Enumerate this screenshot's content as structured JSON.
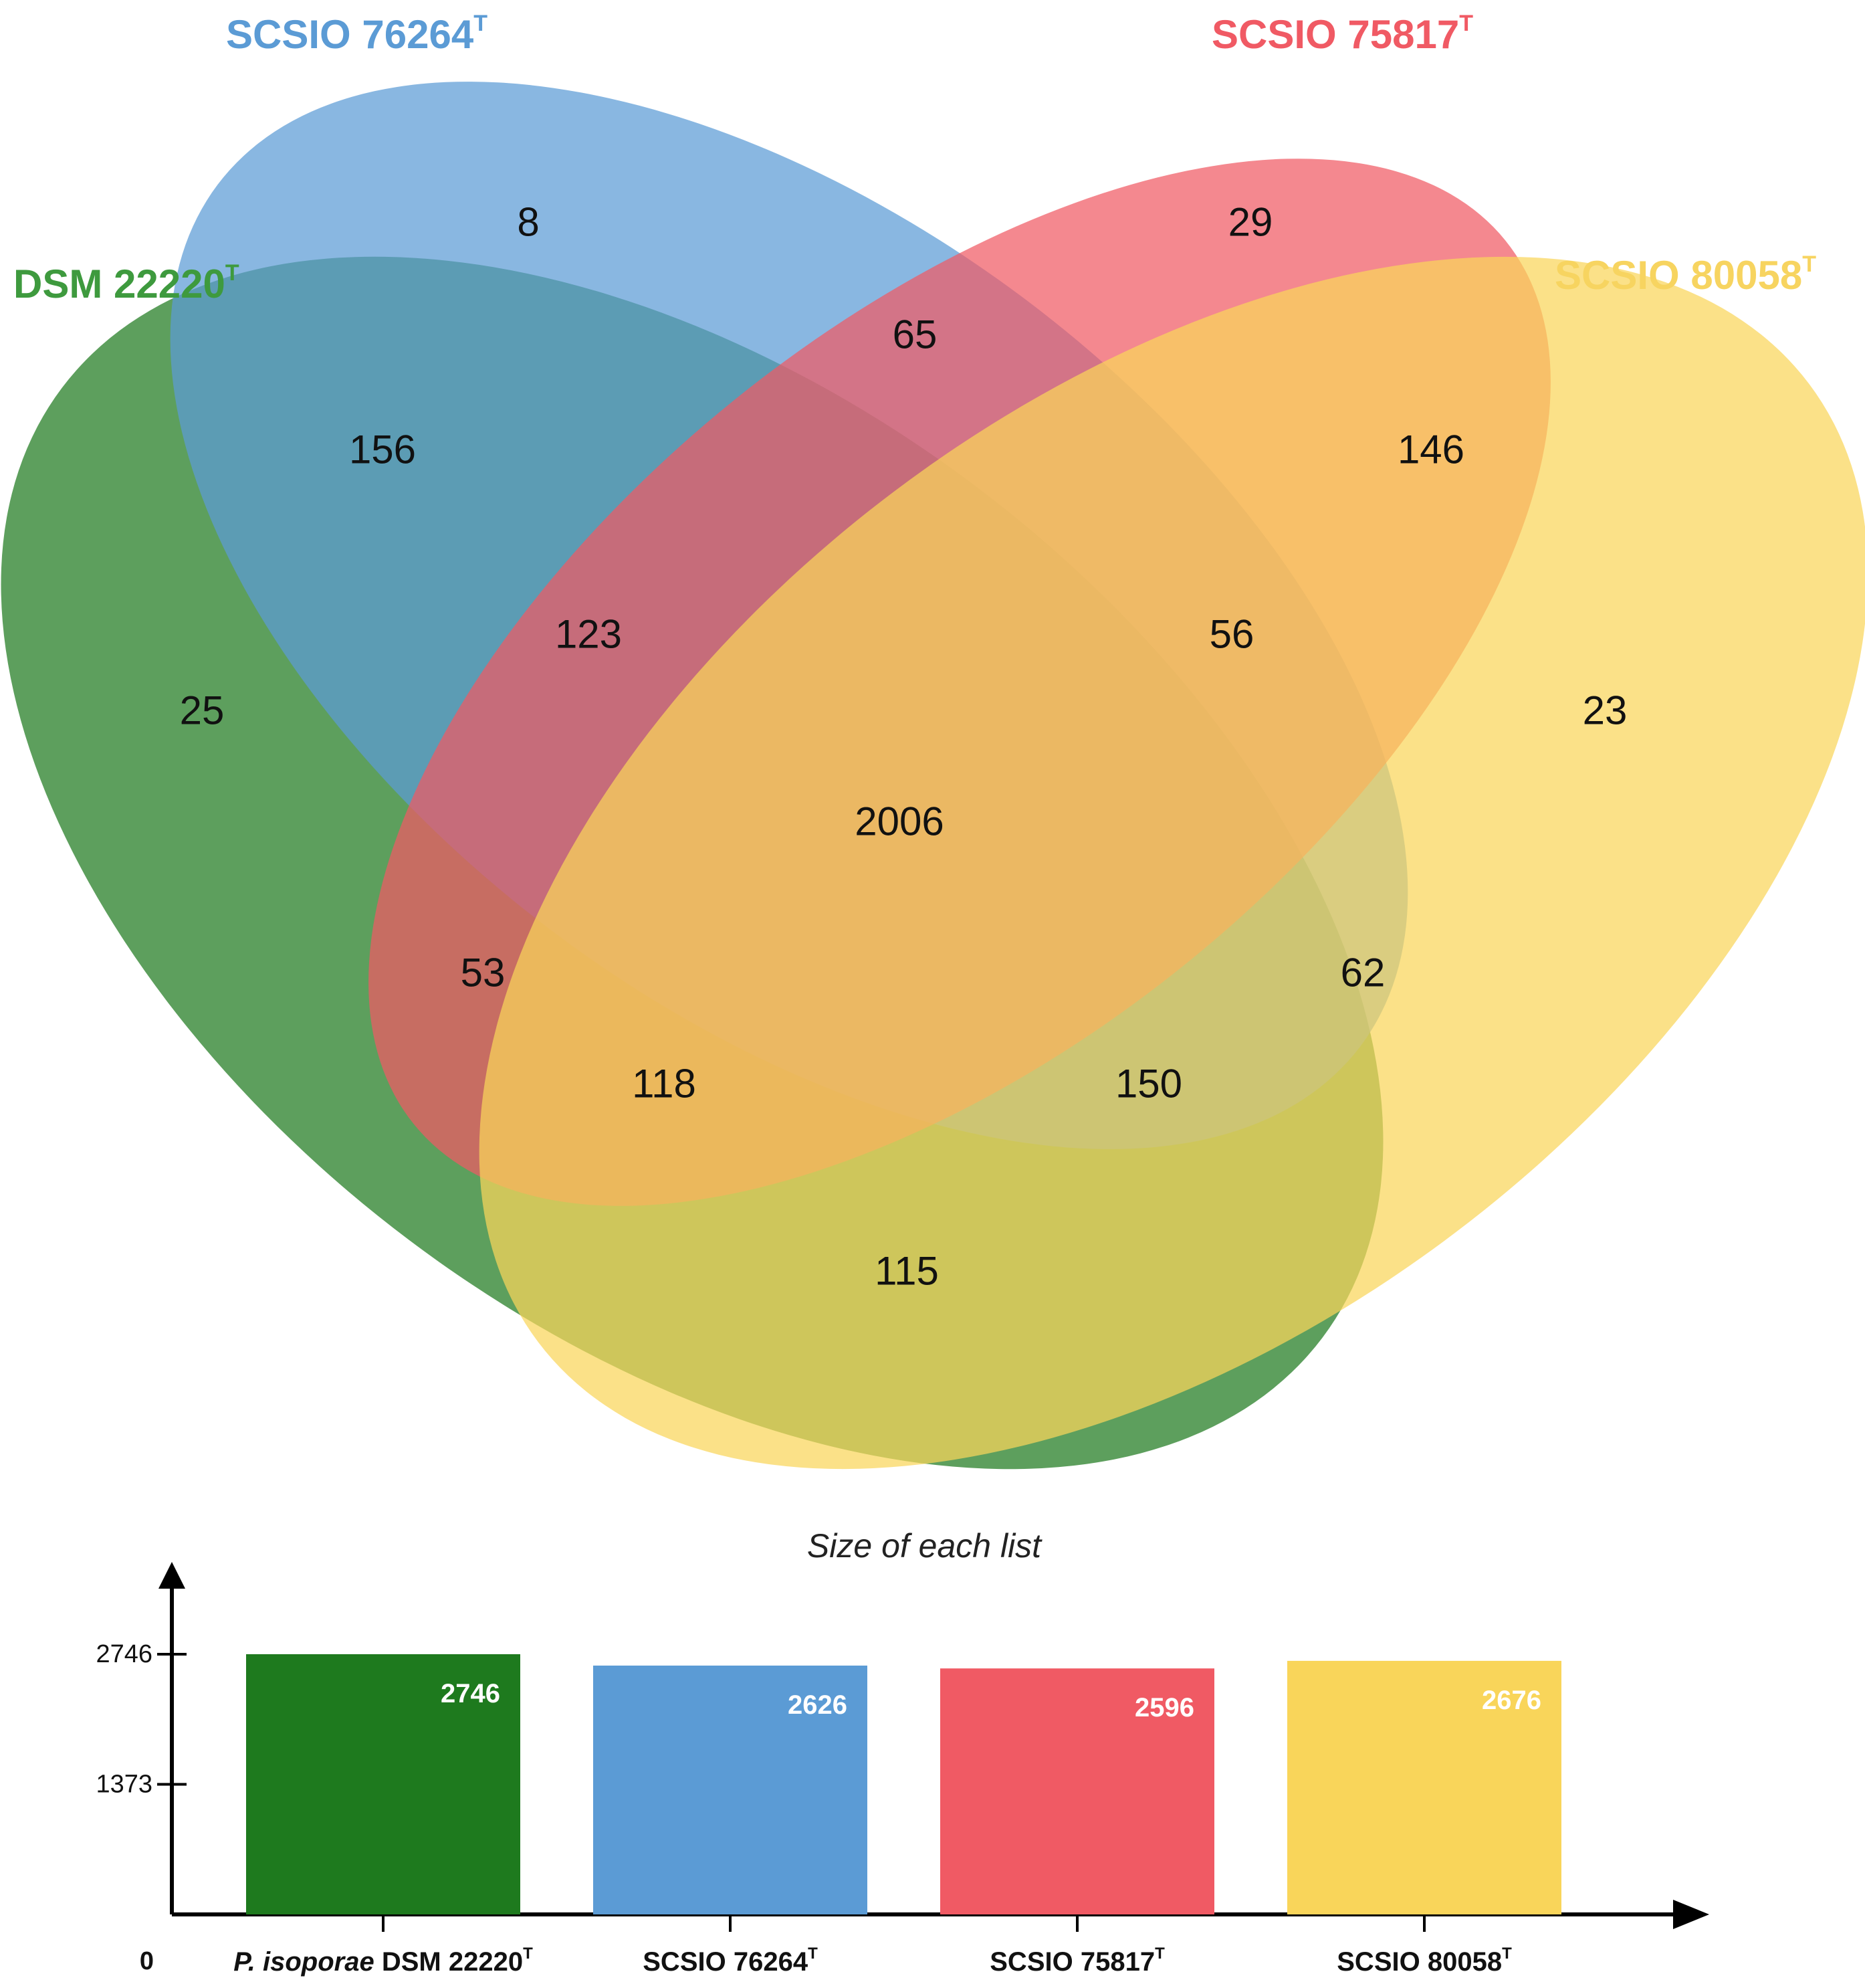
{
  "chart_data": [
    {
      "type": "venn",
      "sets": [
        {
          "id": "dsm",
          "name": "DSM 22220",
          "superscript": "T",
          "color": "#1e7a1e"
        },
        {
          "id": "s76",
          "name": "SCSIO 76264",
          "superscript": "T",
          "color": "#5b9bd5"
        },
        {
          "id": "s75",
          "name": "SCSIO 75817",
          "superscript": "T",
          "color": "#f05a64"
        },
        {
          "id": "s80",
          "name": "SCSIO 80058",
          "superscript": "T",
          "color": "#f9d55a"
        }
      ],
      "regions": [
        {
          "sets": [
            "s76"
          ],
          "value": 8
        },
        {
          "sets": [
            "s75"
          ],
          "value": 29
        },
        {
          "sets": [
            "s76",
            "s75"
          ],
          "value": 65
        },
        {
          "sets": [
            "dsm",
            "s76"
          ],
          "value": 156
        },
        {
          "sets": [
            "s75",
            "s80"
          ],
          "value": 146
        },
        {
          "sets": [
            "dsm",
            "s76",
            "s75"
          ],
          "value": 123
        },
        {
          "sets": [
            "s76",
            "s75",
            "s80"
          ],
          "value": 56
        },
        {
          "sets": [
            "dsm"
          ],
          "value": 25
        },
        {
          "sets": [
            "s80"
          ],
          "value": 23
        },
        {
          "sets": [
            "dsm",
            "s76",
            "s75",
            "s80"
          ],
          "value": 2006
        },
        {
          "sets": [
            "dsm",
            "s75"
          ],
          "value": 53
        },
        {
          "sets": [
            "s76",
            "s80"
          ],
          "value": 62
        },
        {
          "sets": [
            "dsm",
            "s75",
            "s80"
          ],
          "value": 118
        },
        {
          "sets": [
            "dsm",
            "s76",
            "s80"
          ],
          "value": 150
        },
        {
          "sets": [
            "dsm",
            "s80"
          ],
          "value": 115
        }
      ]
    },
    {
      "type": "bar",
      "title": "Size of each list",
      "categories": [
        {
          "italic": "P. isoporae",
          "name": "DSM 22220",
          "superscript": "T"
        },
        {
          "italic": "",
          "name": "SCSIO 76264",
          "superscript": "T"
        },
        {
          "italic": "",
          "name": "SCSIO 75817",
          "superscript": "T"
        },
        {
          "italic": "",
          "name": "SCSIO 80058",
          "superscript": "T"
        }
      ],
      "values": [
        2746,
        2626,
        2596,
        2676
      ],
      "colors": [
        "#1e7a1e",
        "#5b9bd5",
        "#f05a64",
        "#f9d55a"
      ],
      "yticks": [
        0,
        1373,
        2746
      ],
      "ylim": [
        0,
        2746
      ]
    }
  ]
}
